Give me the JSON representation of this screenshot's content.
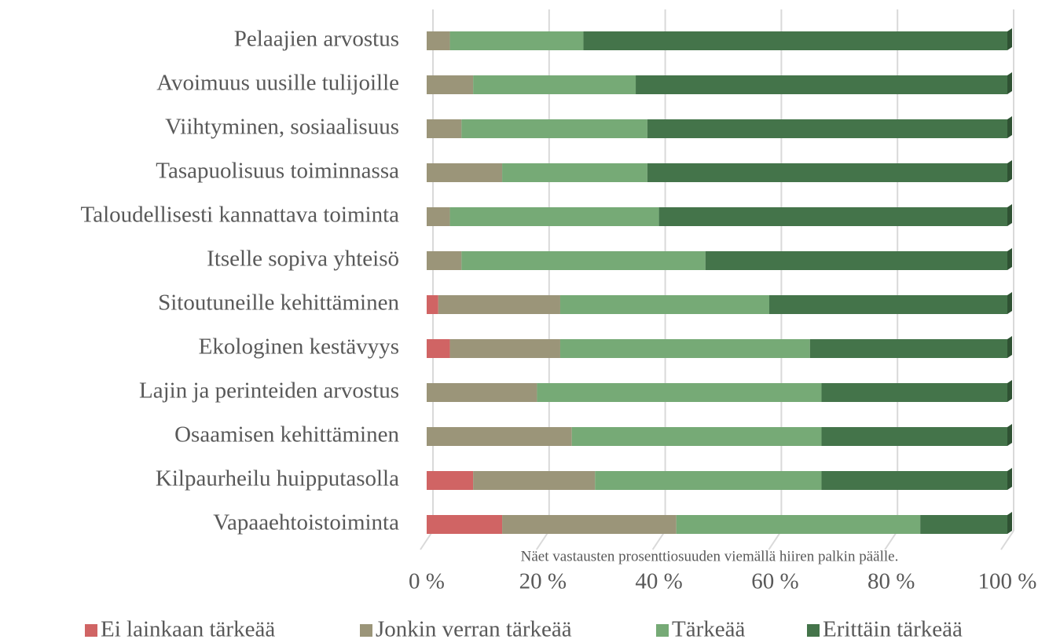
{
  "chart_data": {
    "type": "stacked-bar-horizontal",
    "categories": [
      "Pelaajien arvostus",
      "Avoimuus uusille tulijoille",
      "Viihtyminen, sosiaalisuus",
      "Tasapuolisuus toiminnassa",
      "Taloudellisesti kannattava toiminta",
      "Itselle sopiva yhteisö",
      "Sitoutuneille kehittäminen",
      "Ekologinen kestävyys",
      "Lajin ja perinteiden  arvostus",
      "Osaamisen kehittäminen",
      "Kilpaurheilu huipputasolla",
      "Vapaaehtoistoiminta"
    ],
    "series": [
      {
        "name": "Ei lainkaan tärkeää",
        "color": "#d06464",
        "values": [
          0,
          0,
          0,
          0,
          0,
          0,
          2,
          4,
          0,
          0,
          8,
          13
        ]
      },
      {
        "name": "Jonkin verran tärkeää",
        "color": "#9b9579",
        "values": [
          4,
          8,
          6,
          13,
          4,
          6,
          21,
          19,
          19,
          25,
          21,
          30
        ]
      },
      {
        "name": "Tärkeää",
        "color": "#76aa76",
        "values": [
          23,
          28,
          32,
          25,
          36,
          42,
          36,
          43,
          49,
          43,
          39,
          42
        ]
      },
      {
        "name": "Erittäin tärkeää",
        "color": "#44744a",
        "values": [
          73,
          64,
          62,
          62,
          60,
          52,
          41,
          34,
          32,
          32,
          32,
          15
        ]
      }
    ],
    "xlim": [
      0,
      100
    ],
    "xticks": [
      {
        "value": 0,
        "label": "0 %"
      },
      {
        "value": 20,
        "label": "20 %"
      },
      {
        "value": 40,
        "label": "40 %"
      },
      {
        "value": 60,
        "label": "60 %"
      },
      {
        "value": 80,
        "label": "80 %"
      },
      {
        "value": 100,
        "label": "100 %"
      }
    ],
    "annotation": "Näet vastausten prosenttiosuuden viemällä hiiren palkin päälle.",
    "grid": true
  }
}
